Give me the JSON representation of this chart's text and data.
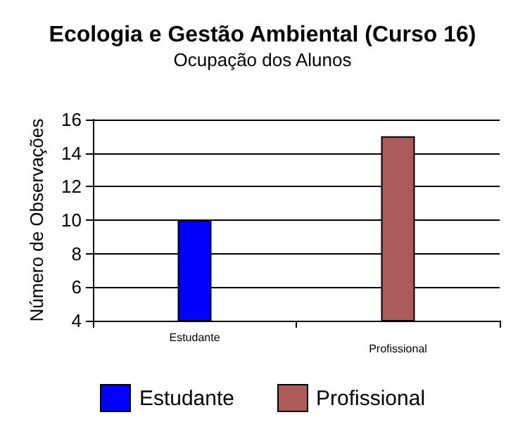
{
  "chart_data": {
    "type": "bar",
    "title": "Ecologia e Gestão Ambiental (Curso 16)",
    "subtitle": "Ocupação dos Alunos",
    "ylabel": "Número de Observações",
    "categories": [
      "Estudante",
      "Profissional"
    ],
    "series": [
      {
        "name": "Estudante",
        "color": "#0000ff",
        "values": [
          10,
          null
        ]
      },
      {
        "name": "Profissional",
        "color": "#ad5a5a",
        "values": [
          null,
          15
        ]
      }
    ],
    "ylim": [
      4,
      16
    ],
    "yticks": [
      4,
      6,
      8,
      10,
      12,
      14,
      16
    ],
    "grid": "y",
    "legend": "bottom"
  }
}
